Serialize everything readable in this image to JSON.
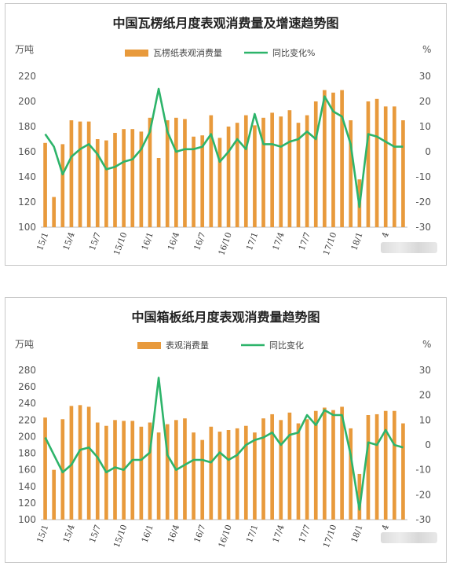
{
  "chart_data": [
    {
      "type": "bar",
      "title": "中国瓦楞纸月度表观消费量及增速趋势图",
      "y_unit_left": "万吨",
      "y_unit_right": "%",
      "ylim_left": [
        100,
        220
      ],
      "yticks_left": [
        "100",
        "120",
        "140",
        "160",
        "180",
        "200",
        "220"
      ],
      "ylim_right": [
        -30,
        30
      ],
      "yticks_right": [
        "-30",
        "-20",
        "-10",
        "0",
        "10",
        "20",
        "30"
      ],
      "x_tick_labels": [
        "15/1",
        "15/4",
        "15/7",
        "15/10",
        "16/1",
        "16/4",
        "16/7",
        "16/10",
        "17/1",
        "17/4",
        "17/7",
        "17/10",
        "18/1",
        "4"
      ],
      "legend_position": "top",
      "series": [
        {
          "name": "瓦楞纸表观消费量",
          "type": "bar",
          "axis": "left",
          "color": "#E89A3C",
          "values": [
            167,
            124,
            166,
            185,
            184,
            184,
            170,
            169,
            175,
            178,
            178,
            176,
            187,
            155,
            185,
            187,
            186,
            172,
            173,
            189,
            171,
            180,
            183,
            189,
            181,
            187,
            191,
            188,
            193,
            183,
            189,
            200,
            209,
            207,
            209,
            185,
            138,
            200,
            202,
            196,
            196,
            185
          ]
        },
        {
          "name": "同比变化%",
          "type": "line",
          "axis": "right",
          "color": "#2DB46A",
          "values": [
            7,
            2,
            -9,
            -2,
            1,
            3,
            -1,
            -7,
            -6,
            -4,
            -3,
            1,
            8,
            25,
            8,
            0,
            1,
            1,
            2,
            7,
            -4,
            0,
            5,
            1,
            15,
            3,
            3,
            2,
            4,
            5,
            8,
            5,
            22,
            16,
            14,
            3,
            -22,
            7,
            6,
            4,
            2,
            2
          ]
        }
      ]
    },
    {
      "type": "bar",
      "title": "中国箱板纸月度表观消费量趋势图",
      "y_unit_left": "万吨",
      "y_unit_right": "%",
      "ylim_left": [
        100,
        280
      ],
      "yticks_left": [
        "100",
        "120",
        "140",
        "160",
        "180",
        "200",
        "220",
        "240",
        "260",
        "280"
      ],
      "ylim_right": [
        -30,
        30
      ],
      "yticks_right": [
        "-30",
        "-20",
        "-10",
        "0",
        "10",
        "20",
        "30"
      ],
      "x_tick_labels": [
        "15/1",
        "15/4",
        "15/7",
        "15/10",
        "16/1",
        "16/4",
        "16/7",
        "16/10",
        "17/1",
        "17/4",
        "17/7",
        "17/10",
        "18/1",
        "4"
      ],
      "legend_position": "top",
      "series": [
        {
          "name": "表观消费量",
          "type": "bar",
          "axis": "left",
          "color": "#E89A3C",
          "values": [
            223,
            160,
            221,
            237,
            238,
            236,
            217,
            213,
            220,
            219,
            219,
            212,
            217,
            205,
            215,
            220,
            222,
            205,
            196,
            212,
            206,
            208,
            210,
            213,
            205,
            222,
            227,
            220,
            229,
            216,
            221,
            231,
            235,
            232,
            236,
            210,
            155,
            226,
            227,
            231,
            231,
            216
          ]
        },
        {
          "name": "同比变化",
          "type": "line",
          "axis": "right",
          "color": "#2DB46A",
          "values": [
            3,
            -4,
            -11,
            -8,
            -2,
            -1,
            -5,
            -11,
            -9,
            -10,
            -6,
            -6,
            -3,
            27,
            -4,
            -10,
            -8,
            -6,
            -6,
            -7,
            -3,
            -6,
            -4,
            0,
            2,
            3,
            5,
            0,
            4,
            5,
            12,
            8,
            14,
            12,
            12,
            -4,
            -26,
            1,
            0,
            6,
            0,
            -1
          ]
        }
      ]
    }
  ]
}
